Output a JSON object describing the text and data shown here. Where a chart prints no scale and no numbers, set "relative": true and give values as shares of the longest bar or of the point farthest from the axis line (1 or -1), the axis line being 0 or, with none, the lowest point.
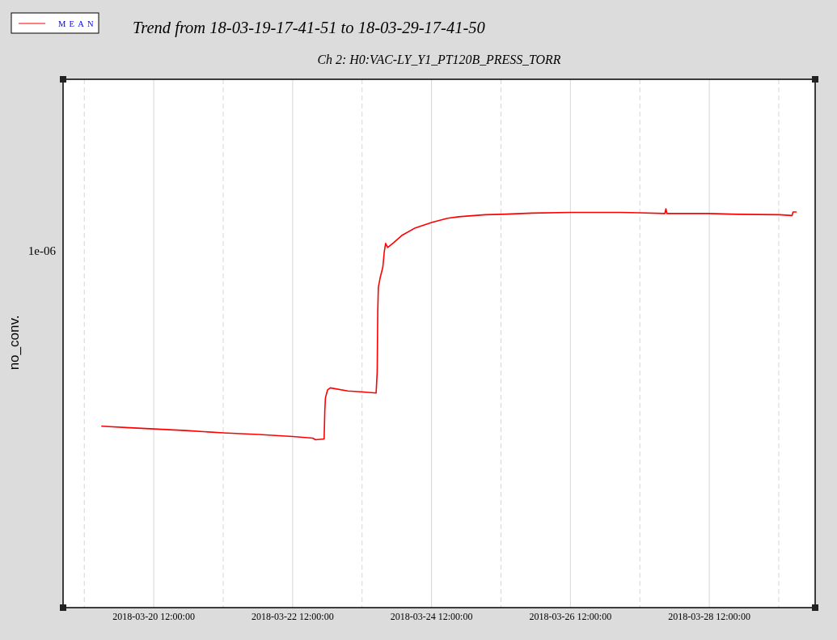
{
  "chart_data": {
    "type": "line",
    "title": "Trend from 18-03-19-17-41-51 to 18-03-29-17-41-50",
    "subtitle": "Ch 2: H0:VAC-LY_Y1_PT120B_PRESS_TORR",
    "ylabel": "no_conv.",
    "relative": true,
    "x": [
      "2018-03-19T18:02",
      "2018-03-20T03:37",
      "2018-03-20T12:00",
      "2018-03-20T23:11",
      "2018-03-21T12:02",
      "2018-03-22T00:20",
      "2018-03-22T12:04",
      "2018-03-22T18:58",
      "2018-03-22T19:54",
      "2018-03-22T22:53",
      "2018-03-22T23:07",
      "2018-03-22T23:20",
      "2018-03-23T00:05",
      "2018-03-23T01:01",
      "2018-03-23T07:05",
      "2018-03-23T11:45",
      "2018-03-23T16:51",
      "2018-03-23T17:13",
      "2018-03-23T17:25",
      "2018-03-23T17:37",
      "2018-03-23T18:15",
      "2018-03-23T19:11",
      "2018-03-23T19:39",
      "2018-03-23T20:08",
      "2018-03-23T20:51",
      "2018-03-23T22:55",
      "2018-03-24T01:43",
      "2018-03-24T06:22",
      "2018-03-24T12:13",
      "2018-03-24T17:32",
      "2018-03-24T21:27",
      "2018-03-25T01:00",
      "2018-03-25T06:35",
      "2018-03-25T12:17",
      "2018-03-25T22:48",
      "2018-03-26T12:04",
      "2018-03-27T05:16",
      "2018-03-27T11:58",
      "2018-03-27T20:38",
      "2018-03-27T21:00",
      "2018-03-27T21:20",
      "2018-03-28T11:43",
      "2018-03-28T21:59",
      "2018-03-29T12:12",
      "2018-03-29T16:36",
      "2018-03-29T16:56",
      "2018-03-29T18:01"
    ],
    "series": [
      {
        "name": "MEAN",
        "color": "#ff0000",
        "values": [
          0.455,
          0.451,
          0.448,
          0.444,
          0.438,
          0.434,
          0.429,
          0.425,
          0.421,
          0.423,
          0.493,
          0.526,
          0.546,
          0.551,
          0.543,
          0.541,
          0.538,
          0.59,
          0.742,
          0.803,
          0.827,
          0.854,
          0.891,
          0.913,
          0.903,
          0.915,
          0.933,
          0.952,
          0.966,
          0.976,
          0.98,
          0.982,
          0.985,
          0.986,
          0.989,
          0.991,
          0.991,
          0.99,
          0.988,
          1,
          0.988,
          0.988,
          0.986,
          0.985,
          0.983,
          0.992,
          0.992
        ]
      }
    ],
    "annotations": [
      "1e-06"
    ],
    "xlim": [
      "2018-03-19T04:40",
      "2018-03-30T00:35"
    ],
    "xticks": [
      {
        "value": "2018-03-19T12:00",
        "label": null
      },
      {
        "value": "2018-03-20T12:00",
        "label": "2018-03-20 12:00:00"
      },
      {
        "value": "2018-03-21T12:00",
        "label": null
      },
      {
        "value": "2018-03-22T12:00",
        "label": "2018-03-22 12:00:00"
      },
      {
        "value": "2018-03-23T12:00",
        "label": null
      },
      {
        "value": "2018-03-24T12:00",
        "label": "2018-03-24 12:00:00"
      },
      {
        "value": "2018-03-25T12:00",
        "label": null
      },
      {
        "value": "2018-03-26T12:00",
        "label": "2018-03-26 12:00:00"
      },
      {
        "value": "2018-03-27T12:00",
        "label": null
      },
      {
        "value": "2018-03-28T12:00",
        "label": "2018-03-28 12:00:00"
      },
      {
        "value": "2018-03-29T12:00",
        "label": null
      }
    ],
    "grid": "x",
    "legend": "top left",
    "line_style": "solid"
  }
}
